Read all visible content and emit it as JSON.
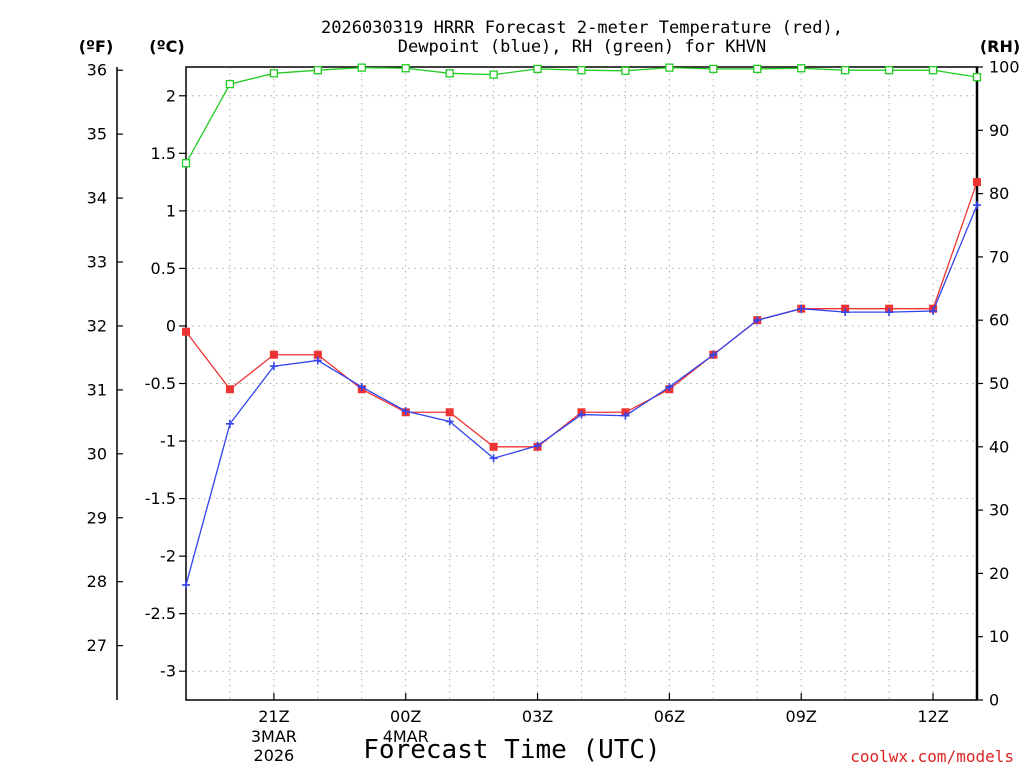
{
  "chart_data": {
    "type": "line",
    "title_line1": "2026030319 HRRR Forecast 2-meter Temperature (red),",
    "title_line2": "Dewpoint (blue), RH (green) for KHVN",
    "units": {
      "fahrenheit": "(ºF)",
      "celsius": "(ºC)",
      "rh": "(RH)"
    },
    "xlabel": "Forecast Time (UTC)",
    "credit": "coolwx.com/models",
    "x_hours": [
      0,
      1,
      2,
      3,
      4,
      5,
      6,
      7,
      8,
      9,
      10,
      11,
      12,
      13,
      14,
      15,
      16,
      17,
      18
    ],
    "x_ticks": [
      {
        "hour": 2,
        "label": "21Z",
        "date1": "3MAR",
        "date2": "2026"
      },
      {
        "hour": 5,
        "label": "00Z",
        "date1": "4MAR",
        "date2": ""
      },
      {
        "hour": 8,
        "label": "03Z",
        "date1": "",
        "date2": ""
      },
      {
        "hour": 11,
        "label": "06Z",
        "date1": "",
        "date2": ""
      },
      {
        "hour": 14,
        "label": "09Z",
        "date1": "",
        "date2": ""
      },
      {
        "hour": 17,
        "label": "12Z",
        "date1": "",
        "date2": ""
      }
    ],
    "celsius_axis": {
      "range": [
        -3.25,
        2.25
      ],
      "ticks": [
        "2",
        "1.5",
        "1",
        "0.5",
        "0",
        "-0.5",
        "-1",
        "-1.5",
        "-2",
        "-2.5",
        "-3"
      ]
    },
    "fahrenheit_axis": {
      "ticks": [
        "36",
        "35",
        "34",
        "33",
        "32",
        "31",
        "30",
        "29",
        "28",
        "27"
      ]
    },
    "rh_axis": {
      "range": [
        0,
        100
      ],
      "ticks": [
        "100",
        "90",
        "80",
        "70",
        "60",
        "50",
        "40",
        "30",
        "20",
        "10",
        "0"
      ]
    },
    "series": [
      {
        "name": "Temperature",
        "color": "#ee3333",
        "marker": "filled-square",
        "values": [
          -0.05,
          -0.55,
          -0.25,
          -0.25,
          -0.55,
          -0.75,
          -0.75,
          -1.05,
          -1.05,
          -0.75,
          -0.75,
          -0.55,
          -0.25,
          0.05,
          0.15,
          0.15,
          0.15,
          0.15,
          1.25
        ]
      },
      {
        "name": "Dewpoint",
        "color": "#3344ee",
        "marker": "plus",
        "values": [
          -2.25,
          -0.85,
          -0.35,
          -0.3,
          -0.53,
          -0.74,
          -0.83,
          -1.15,
          -1.04,
          -0.77,
          -0.78,
          -0.53,
          -0.25,
          0.05,
          0.15,
          0.12,
          0.12,
          0.13,
          1.05
        ]
      },
      {
        "name": "RH",
        "color": "#22cc22",
        "marker": "open-square",
        "values": [
          84.8,
          97.3,
          99.0,
          99.5,
          99.9,
          99.8,
          99.0,
          98.8,
          99.7,
          99.5,
          99.4,
          99.9,
          99.7,
          99.7,
          99.8,
          99.5,
          99.5,
          99.5,
          98.4
        ]
      }
    ]
  }
}
